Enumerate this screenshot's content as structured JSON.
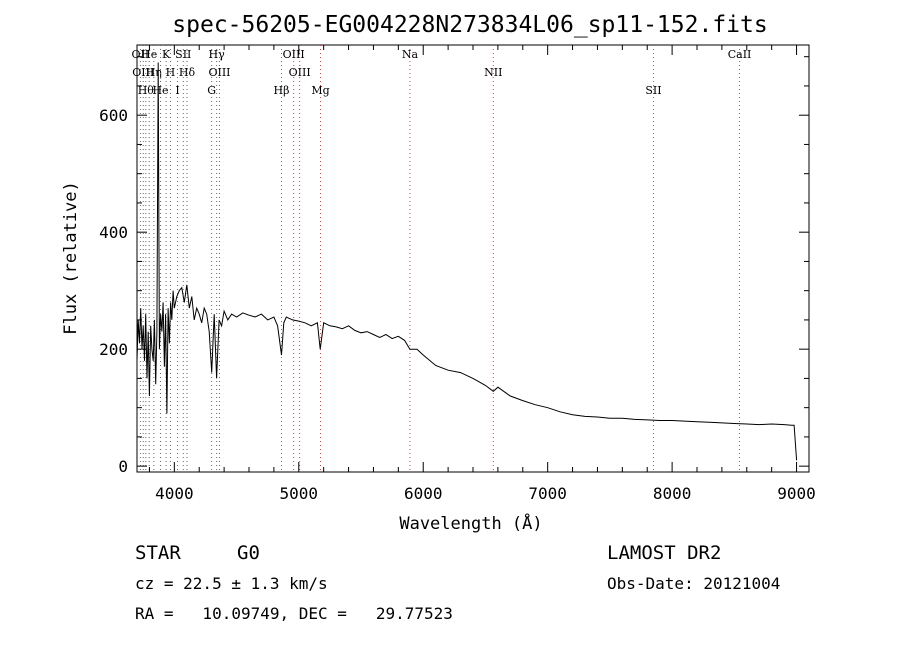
{
  "chart_data": {
    "type": "line",
    "title": "spec-56205-EG004228N273834L06_sp11-152.fits",
    "xlabel": "Wavelength (Å)",
    "ylabel": "Flux (relative)",
    "xlim": [
      3700,
      9100
    ],
    "ylim": [
      -10,
      720
    ],
    "xticks": [
      4000,
      5000,
      6000,
      7000,
      8000,
      9000
    ],
    "yticks": [
      0,
      200,
      400,
      600
    ],
    "grid": false,
    "series": [
      {
        "x": [
          3700,
          3710,
          3720,
          3730,
          3740,
          3750,
          3760,
          3770,
          3780,
          3790,
          3800,
          3810,
          3820,
          3830,
          3840,
          3850,
          3860,
          3870,
          3880,
          3890,
          3900,
          3910,
          3920,
          3930,
          3940,
          3950,
          3960,
          3970,
          3980,
          3990,
          4000,
          4020,
          4040,
          4060,
          4080,
          4100,
          4120,
          4140,
          4160,
          4180,
          4200,
          4220,
          4240,
          4260,
          4280,
          4300,
          4320,
          4340,
          4360,
          4380,
          4400,
          4430,
          4460,
          4500,
          4550,
          4600,
          4650,
          4700,
          4750,
          4800,
          4830,
          4861,
          4880,
          4900,
          4950,
          5000,
          5050,
          5100,
          5150,
          5172,
          5200,
          5250,
          5300,
          5350,
          5400,
          5450,
          5500,
          5550,
          5600,
          5650,
          5700,
          5750,
          5800,
          5850,
          5893,
          5950,
          6000,
          6100,
          6200,
          6300,
          6400,
          6500,
          6563,
          6600,
          6700,
          6800,
          6900,
          7000,
          7100,
          7200,
          7300,
          7400,
          7500,
          7600,
          7700,
          7800,
          7900,
          8000,
          8100,
          8200,
          8300,
          8400,
          8500,
          8600,
          8700,
          8800,
          8900,
          8960,
          8980,
          9000
        ],
        "y": [
          180,
          250,
          210,
          270,
          200,
          240,
          180,
          260,
          150,
          230,
          120,
          240,
          200,
          180,
          250,
          140,
          230,
          690,
          200,
          260,
          230,
          280,
          170,
          260,
          90,
          270,
          210,
          280,
          250,
          300,
          270,
          290,
          300,
          305,
          280,
          310,
          270,
          290,
          250,
          270,
          260,
          245,
          270,
          260,
          230,
          160,
          260,
          150,
          250,
          240,
          265,
          250,
          260,
          255,
          262,
          258,
          255,
          260,
          250,
          255,
          240,
          190,
          245,
          255,
          250,
          248,
          245,
          240,
          245,
          200,
          245,
          240,
          238,
          235,
          240,
          232,
          228,
          230,
          225,
          220,
          225,
          218,
          222,
          215,
          200,
          200,
          190,
          172,
          164,
          160,
          150,
          138,
          128,
          135,
          120,
          112,
          105,
          100,
          93,
          88,
          85,
          84,
          82,
          82,
          80,
          79,
          78,
          78,
          77,
          76,
          75,
          74,
          73,
          72,
          71,
          72,
          71,
          70,
          70,
          10
        ]
      }
    ],
    "lines": [
      {
        "wavelength": 3727,
        "label": "OII"
      },
      {
        "wavelength": 3750,
        "label": "OIII"
      },
      {
        "wavelength": 3771,
        "label": "Hθ"
      },
      {
        "wavelength": 3798,
        "label": "He"
      },
      {
        "wavelength": 3835,
        "label": "Hη"
      },
      {
        "wavelength": 3889,
        "label": "He"
      },
      {
        "wavelength": 3934,
        "label": "K"
      },
      {
        "wavelength": 3969,
        "label": "H"
      },
      {
        "wavelength": 4026,
        "label": "I"
      },
      {
        "wavelength": 4072,
        "label": "SII"
      },
      {
        "wavelength": 4102,
        "label": "Hδ"
      },
      {
        "wavelength": 4300,
        "label": "G"
      },
      {
        "wavelength": 4340,
        "label": "Hγ"
      },
      {
        "wavelength": 4363,
        "label": "OIII"
      },
      {
        "wavelength": 4861,
        "label": "Hβ"
      },
      {
        "wavelength": 4959,
        "label": "OIII"
      },
      {
        "wavelength": 5007,
        "label": "OIII"
      },
      {
        "wavelength": 5175,
        "label": "Mg"
      },
      {
        "wavelength": 5893,
        "label": "Na"
      },
      {
        "wavelength": 6563,
        "label": "NII"
      },
      {
        "wavelength": 7850,
        "label": "SII"
      },
      {
        "wavelength": 8542,
        "label": "CaII"
      }
    ]
  },
  "info": {
    "object_class": "STAR",
    "subclass": "G0",
    "survey": "LAMOST DR2",
    "redshift_line": "cz = 22.5 ± 1.3 km/s",
    "obs_date_line": "Obs-Date: 20121004",
    "coords_line": "RA =   10.09749, DEC =   29.77523"
  }
}
